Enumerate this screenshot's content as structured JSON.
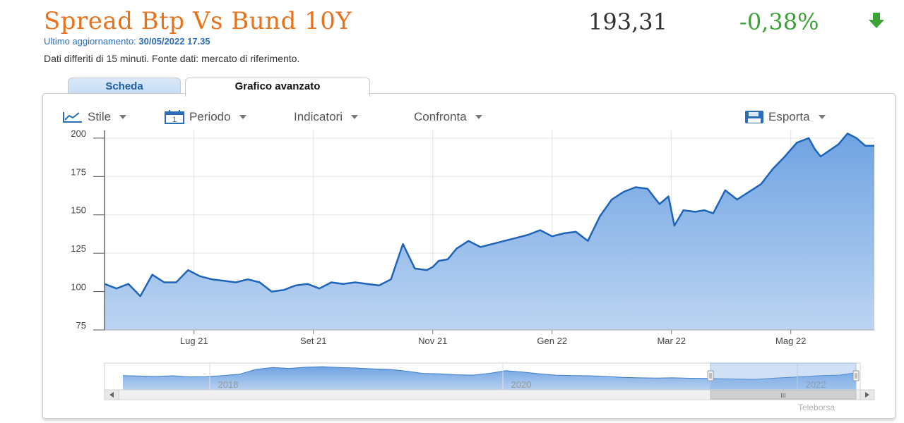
{
  "header": {
    "title": "Spread Btp Vs Bund 10Y",
    "price": "193,31",
    "change": "-0,38%",
    "updated_label": "Ultimo aggiornamento:",
    "updated_value": "30/05/2022 17.35",
    "delayed_note": "Dati differiti di 15 minuti.  Fonte dati: mercato di riferimento.",
    "change_color": "#3aa336",
    "title_color": "#e8731c"
  },
  "tabs": [
    {
      "label": "Scheda",
      "active": false
    },
    {
      "label": "Grafico avanzato",
      "active": true
    }
  ],
  "toolbar": {
    "stile": "Stile",
    "periodo": "Periodo",
    "periodo_icon_text": "1",
    "indicatori": "Indicatori",
    "confronta": "Confronta",
    "esporta": "Esporta"
  },
  "chart_data": {
    "type": "area",
    "series_color": "#1e64b8",
    "ylim": [
      75,
      205
    ],
    "yticks": [
      75,
      100,
      125,
      150,
      175,
      200
    ],
    "xticks": [
      {
        "label": "Lug 21",
        "x": 1.5
      },
      {
        "label": "Set 21",
        "x": 3.5
      },
      {
        "label": "Nov 21",
        "x": 5.5
      },
      {
        "label": "Gen 22",
        "x": 7.5
      },
      {
        "label": "Mar 22",
        "x": 9.5
      },
      {
        "label": "Mag 22",
        "x": 11.5
      }
    ],
    "x": [
      0,
      0.2,
      0.4,
      0.6,
      0.8,
      1.0,
      1.2,
      1.4,
      1.6,
      1.8,
      2.0,
      2.2,
      2.4,
      2.6,
      2.8,
      3.0,
      3.2,
      3.4,
      3.6,
      3.8,
      4.0,
      4.2,
      4.4,
      4.6,
      4.8,
      5.0,
      5.2,
      5.4,
      5.5,
      5.6,
      5.75,
      5.9,
      6.1,
      6.3,
      6.5,
      6.7,
      6.9,
      7.1,
      7.3,
      7.5,
      7.7,
      7.9,
      8.1,
      8.3,
      8.5,
      8.7,
      8.9,
      9.1,
      9.3,
      9.45,
      9.55,
      9.7,
      9.9,
      10.05,
      10.2,
      10.4,
      10.6,
      10.8,
      11.0,
      11.2,
      11.4,
      11.6,
      11.8,
      11.9,
      12.0,
      12.15,
      12.3,
      12.45,
      12.6,
      12.75,
      12.9
    ],
    "values": [
      105,
      102,
      105,
      97,
      111,
      106,
      106,
      114,
      110,
      108,
      107,
      106,
      108,
      106,
      100,
      101,
      104,
      105,
      102,
      106,
      105,
      106,
      105,
      104,
      108,
      131,
      115,
      114,
      116,
      120,
      121,
      128,
      133,
      129,
      131,
      133,
      135,
      137,
      140,
      136,
      138,
      139,
      133,
      149,
      160,
      165,
      168,
      167,
      157,
      162,
      143,
      153,
      152,
      153,
      151,
      166,
      160,
      165,
      170,
      180,
      188,
      197,
      200,
      193,
      188,
      192,
      196,
      203,
      200,
      195,
      195
    ],
    "navigator": {
      "year_labels": [
        "2018",
        "2020",
        "2022"
      ],
      "values": [
        160,
        155,
        150,
        158,
        145,
        148,
        160,
        175,
        230,
        250,
        240,
        255,
        260,
        250,
        245,
        235,
        230,
        210,
        185,
        180,
        170,
        165,
        185,
        215,
        200,
        180,
        165,
        160,
        158,
        150,
        140,
        135,
        132,
        135,
        130,
        128,
        125,
        120,
        118,
        130,
        140,
        150,
        160,
        165,
        193
      ]
    }
  },
  "watermark": "Teleborsa",
  "scroll_grip": "III"
}
